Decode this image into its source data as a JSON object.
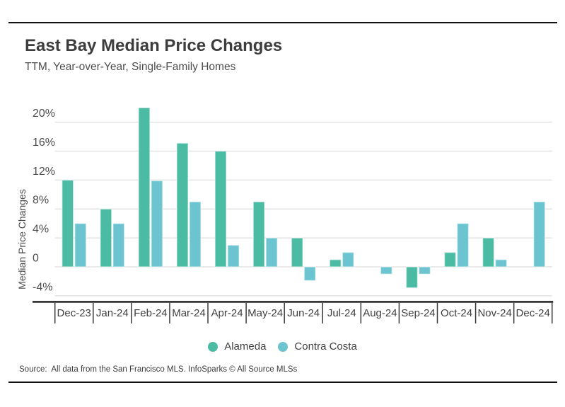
{
  "page": {
    "title": "East Bay Median Price Changes",
    "subtitle": "TTM, Year-over-Year, Single-Family Homes",
    "source": "Source:  All data from the San Francisco MLS. InfoSparks © All Source MLSs"
  },
  "legend": {
    "items": [
      {
        "label": "Alameda",
        "color": "#4cbba3"
      },
      {
        "label": "Contra Costa",
        "color": "#6bc4cf"
      }
    ]
  },
  "colors": {
    "alameda": "#4cbba3",
    "contra_costa": "#6bc4cf",
    "gridline": "#e3e3e3",
    "axis": "#383838",
    "tick_text": "#4e4e4e",
    "category_text": "#3f3f3f"
  },
  "chart_data": {
    "type": "bar",
    "title": "East Bay Median Price Changes",
    "subtitle": "TTM, Year-over-Year, Single-Family Homes",
    "categories": [
      "Dec-23",
      "Jan-24",
      "Feb-24",
      "Mar-24",
      "Apr-24",
      "May-24",
      "Jun-24",
      "Jul-24",
      "Aug-24",
      "Sep-24",
      "Oct-24",
      "Nov-24",
      "Dec-24"
    ],
    "series": [
      {
        "name": "Alameda",
        "color": "#4cbba3",
        "values": [
          12.0,
          8.0,
          22.0,
          17.1,
          16.0,
          9.0,
          4.0,
          1.0,
          0.0,
          -2.9,
          2.0,
          4.0,
          0.0
        ]
      },
      {
        "name": "Contra Costa",
        "color": "#6bc4cf",
        "values": [
          6.0,
          6.0,
          11.9,
          9.0,
          3.0,
          4.0,
          -1.9,
          2.0,
          -1.0,
          -1.0,
          6.0,
          1.0,
          9.0
        ]
      }
    ],
    "ylabel": "Median Price Changes",
    "xlabel": "",
    "yticks": [
      20,
      16,
      12,
      8,
      4,
      0,
      -4
    ],
    "ytick_labels": [
      "20%",
      "16%",
      "12%",
      "8%",
      "4%",
      "0",
      "-4%"
    ],
    "ylim": [
      -4.8,
      23.5
    ],
    "grid": "horizontal",
    "legend_position": "bottom"
  }
}
